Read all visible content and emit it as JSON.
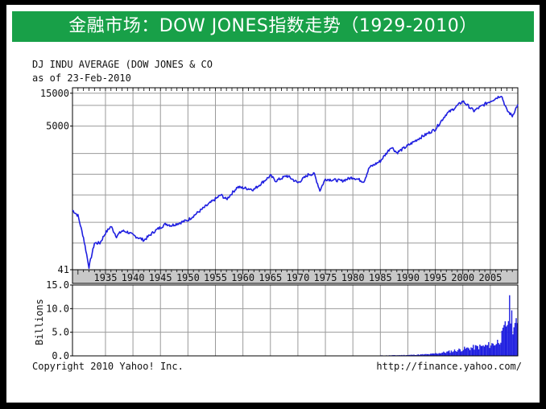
{
  "banner": {
    "title": "金融市场：DOW JONES指数走势（1929-2010）"
  },
  "header": {
    "line1": "DJ INDU AVERAGE (DOW JONES & CO",
    "line2": "as of 23-Feb-2010"
  },
  "footer": {
    "copyright": "Copyright 2010 Yahoo! Inc.",
    "url": "http://finance.yahoo.com/"
  },
  "colors": {
    "banner_bg": "#18a048",
    "series": "#1f1fe0",
    "grid": "#9a9a9a",
    "tick_band": "#c8c8c8"
  },
  "chart_data": [
    {
      "type": "line",
      "scale": "log",
      "series": [
        {
          "x": [
            1929,
            1930,
            1931,
            1932,
            1933,
            1934,
            1935,
            1936,
            1937,
            1938,
            1939,
            1940,
            1942,
            1944,
            1946,
            1947,
            1950,
            1954,
            1956,
            1957,
            1959,
            1962,
            1965,
            1966,
            1968,
            1970,
            1972,
            1973,
            1974,
            1975,
            1978,
            1980,
            1982,
            1983,
            1985,
            1987,
            1988,
            1990,
            1992,
            1995,
            1997,
            1998,
            2000,
            2002,
            2004,
            2007,
            2008,
            2009,
            2010
          ],
          "y": [
            300,
            250,
            120,
            45,
            100,
            100,
            140,
            175,
            125,
            150,
            145,
            130,
            110,
            150,
            190,
            180,
            215,
            380,
            500,
            430,
            650,
            600,
            950,
            800,
            950,
            750,
            1000,
            1000,
            580,
            850,
            800,
            900,
            780,
            1250,
            1550,
            2500,
            2050,
            2600,
            3300,
            4500,
            7500,
            8500,
            11500,
            8300,
            10400,
            14000,
            8500,
            7000,
            10300
          ]
        }
      ],
      "ytick_labels": [
        "15000",
        "5000",
        "41"
      ],
      "xtick_labels": [
        "1935",
        "1940",
        "1945",
        "1950",
        "1955",
        "1960",
        "1965",
        "1970",
        "1975",
        "1980",
        "1985",
        "1990",
        "1995",
        "2000",
        "2005"
      ],
      "xlim": [
        1929,
        2010
      ],
      "ylim": [
        41,
        18000
      ],
      "grid": true
    },
    {
      "type": "bar",
      "ylabel": "Billions",
      "ytick_labels": [
        "15.0",
        "10.0",
        "5.0",
        "0.0"
      ],
      "ylim": [
        0,
        15
      ],
      "x": [
        1985,
        1990,
        1994,
        1997,
        2000,
        2002,
        2004,
        2006,
        2007,
        2008,
        2008.5,
        2009,
        2010
      ],
      "values": [
        0.1,
        0.2,
        0.4,
        0.9,
        1.6,
        2.0,
        2.3,
        3.0,
        4.5,
        8.0,
        11.5,
        7.5,
        6.5
      ],
      "grid": true
    }
  ]
}
